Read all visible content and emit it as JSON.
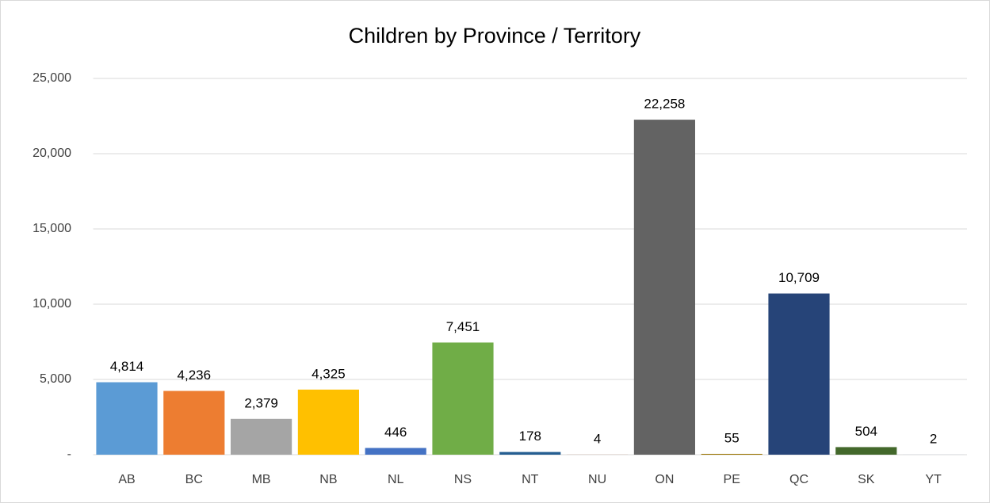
{
  "chart_data": {
    "type": "bar",
    "title": "Children by Province / Territory",
    "categories": [
      "AB",
      "BC",
      "MB",
      "NB",
      "NL",
      "NS",
      "NT",
      "NU",
      "ON",
      "PE",
      "QC",
      "SK",
      "YT"
    ],
    "values": [
      4814,
      4236,
      2379,
      4325,
      446,
      7451,
      178,
      4,
      22258,
      55,
      10709,
      504,
      2
    ],
    "value_labels": [
      "4,814",
      "4,236",
      "2,379",
      "4,325",
      "446",
      "7,451",
      "178",
      "4",
      "22,258",
      "55",
      "10,709",
      "504",
      "2"
    ],
    "colors": [
      "#5b9bd5",
      "#ed7d31",
      "#a5a5a5",
      "#ffc000",
      "#4472c4",
      "#70ad47",
      "#255e91",
      "#9e480e",
      "#636363",
      "#997300",
      "#264478",
      "#43682b",
      "#698ed0"
    ],
    "ylim": [
      0,
      25000
    ],
    "yticks": [
      {
        "value": 0,
        "label": "-"
      },
      {
        "value": 5000,
        "label": "5,000"
      },
      {
        "value": 10000,
        "label": "10,000"
      },
      {
        "value": 15000,
        "label": "15,000"
      },
      {
        "value": 20000,
        "label": "20,000"
      },
      {
        "value": 25000,
        "label": "25,000"
      }
    ],
    "grid": true
  }
}
